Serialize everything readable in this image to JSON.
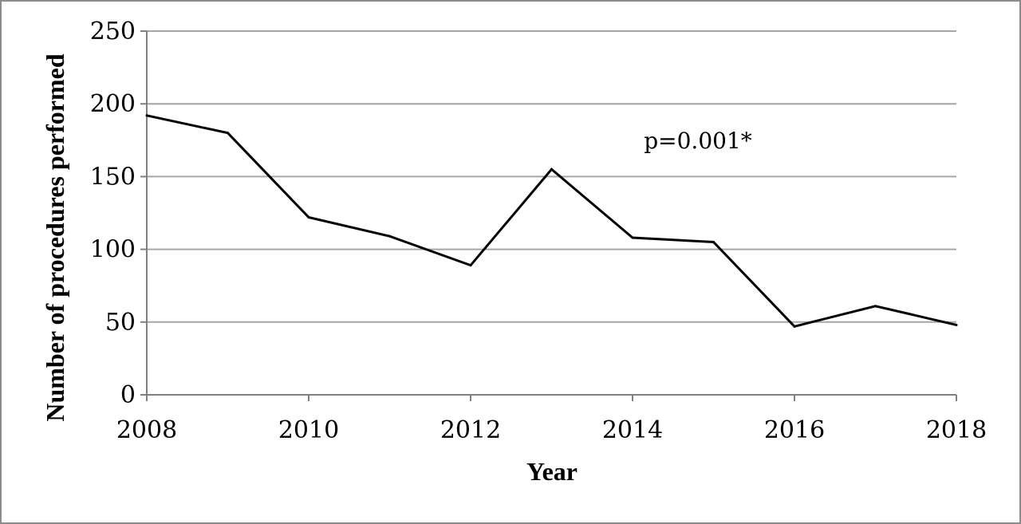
{
  "chart_data": {
    "type": "line",
    "title": "",
    "xlabel": "Year",
    "ylabel": "Number of procedures performed",
    "x": [
      2008,
      2009,
      2010,
      2011,
      2012,
      2013,
      2014,
      2015,
      2016,
      2017,
      2018
    ],
    "series": [
      {
        "values": [
          192,
          180,
          122,
          109,
          89,
          155,
          108,
          105,
          47,
          61,
          48
        ]
      }
    ],
    "xlim": [
      2008,
      2018
    ],
    "ylim": [
      0,
      250
    ],
    "x_ticks": [
      "2008",
      "2010",
      "2012",
      "2014",
      "2016",
      "2018"
    ],
    "y_ticks": [
      "0",
      "50",
      "100",
      "150",
      "200",
      "250"
    ],
    "grid": "horizontal",
    "legend": "none",
    "annotation": "p=0.001*",
    "line_color": "#000000",
    "grid_color": "#a6a6a6"
  }
}
